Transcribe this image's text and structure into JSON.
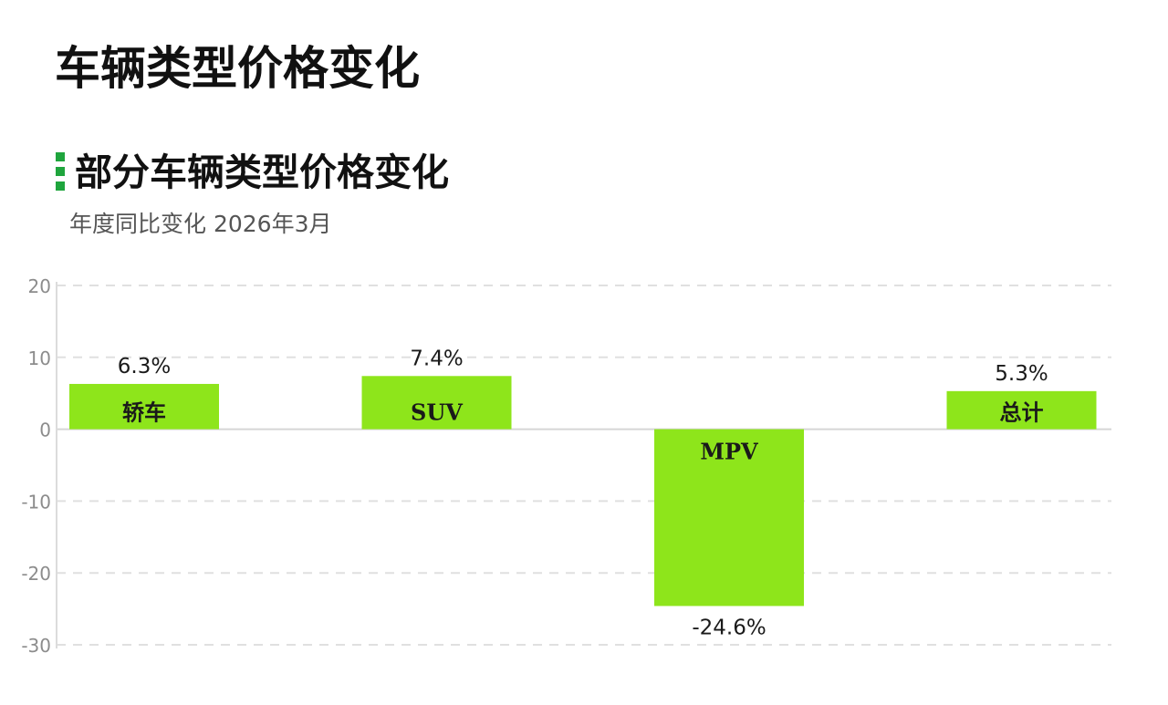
{
  "page": {
    "title": "车辆类型价格变化"
  },
  "chart_data": {
    "type": "bar",
    "title": "部分车辆类型价格变化",
    "subtitle": "年度同比变化 2026年3月",
    "xlabel": "",
    "ylabel": "",
    "categories": [
      "轿车",
      "SUV",
      "MPV",
      "总计"
    ],
    "values": [
      6.3,
      7.4,
      -24.6,
      5.3
    ],
    "value_labels": [
      "6.3%",
      "7.4%",
      "-24.6%",
      "5.3%"
    ],
    "ylim": [
      -30,
      20
    ],
    "yticks": [
      20,
      10,
      0,
      -10,
      -20,
      -30
    ],
    "grid": true,
    "legend": "none",
    "bar_color": "#8ee51b",
    "accent_color": "#1fa53d"
  }
}
